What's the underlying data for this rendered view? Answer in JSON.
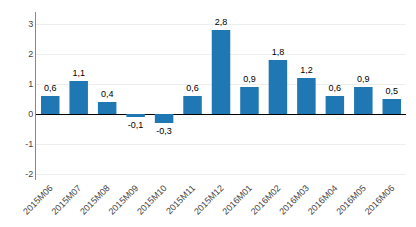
{
  "chart_data": {
    "type": "bar",
    "categories": [
      "2015M06",
      "2015M07",
      "2015M08",
      "2015M09",
      "2015M10",
      "2015M11",
      "2015M12",
      "2016M01",
      "2016M02",
      "2016M03",
      "2016M04",
      "2016M05",
      "2016M06"
    ],
    "values": [
      0.6,
      1.1,
      0.4,
      -0.1,
      -0.3,
      0.6,
      2.8,
      0.9,
      1.8,
      1.2,
      0.6,
      0.9,
      0.5
    ],
    "value_labels": [
      "0,6",
      "1,1",
      "0,4",
      "-0,1",
      "-0,3",
      "0,6",
      "2,8",
      "0,9",
      "1,8",
      "1,2",
      "0,6",
      "0,9",
      "0,5"
    ],
    "data_labels": true,
    "color": "#1f77b4",
    "ylim": [
      -2.2,
      3.4
    ],
    "yticks": [
      -2,
      -1,
      0,
      1,
      2,
      3
    ],
    "grid": true
  }
}
